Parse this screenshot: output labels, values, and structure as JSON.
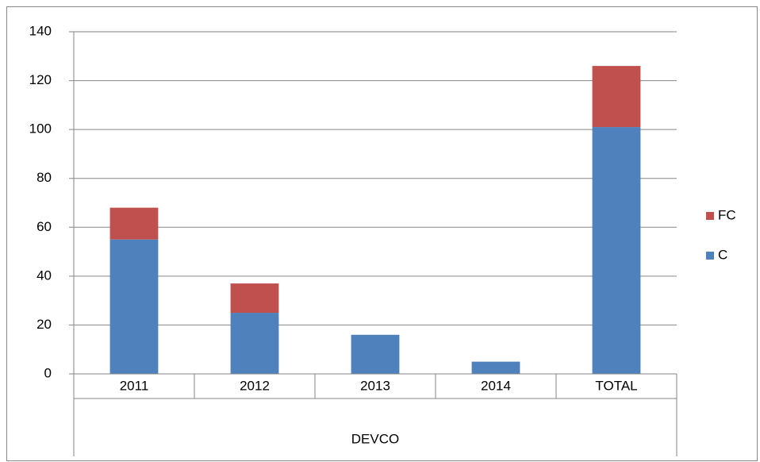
{
  "chart_data": {
    "type": "stacked_bar",
    "categories": [
      "2011",
      "2012",
      "2013",
      "2014",
      "TOTAL"
    ],
    "category_group": "DEVCO",
    "series": [
      {
        "name": "C",
        "color": "#4f81bd",
        "values": [
          55,
          25,
          16,
          5,
          101
        ]
      },
      {
        "name": "FC",
        "color": "#c0504d",
        "values": [
          13,
          12,
          0,
          0,
          25
        ]
      }
    ],
    "ylim": [
      0,
      140
    ],
    "yticks": [
      0,
      20,
      40,
      60,
      80,
      100,
      120,
      140
    ],
    "grid": true,
    "legend": "right"
  }
}
